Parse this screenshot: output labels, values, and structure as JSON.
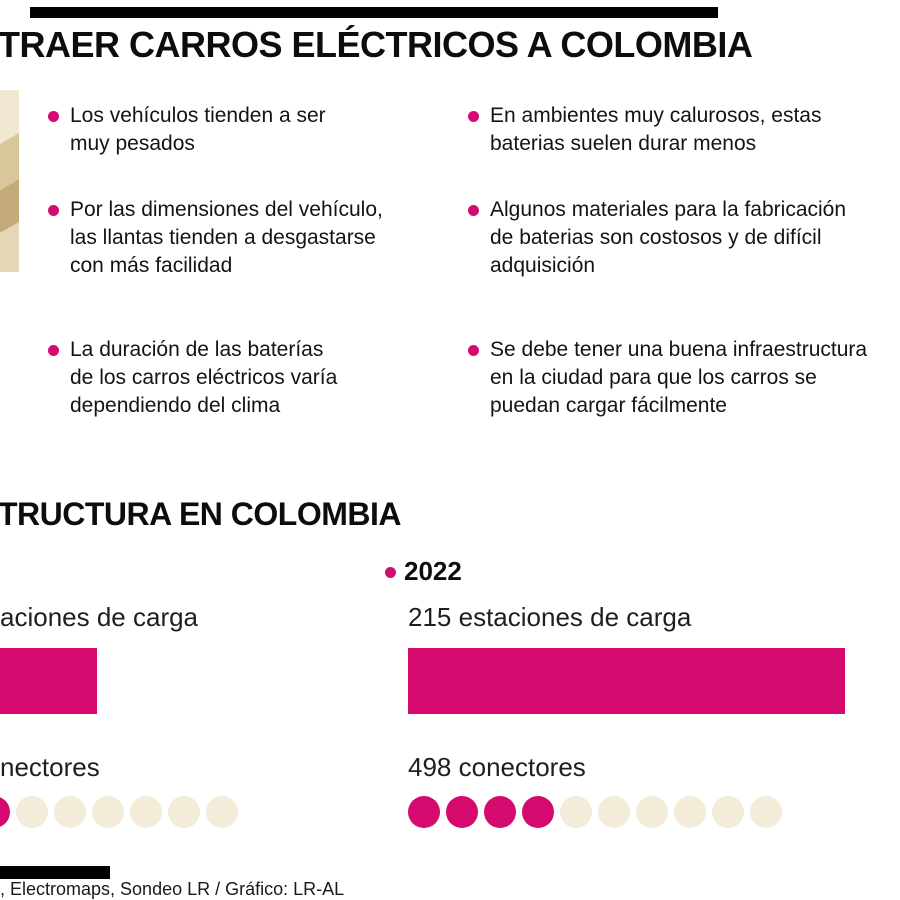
{
  "colors": {
    "accent": "#d50a6e",
    "beige": "#f2ecd9"
  },
  "header": {
    "title": "TRAER CARROS ELÉCTRICOS A COLOMBIA"
  },
  "bullets": {
    "left": [
      "Los vehículos tienden a ser\nmuy pesados",
      "Por las dimensiones del vehículo,\nlas llantas tienden a desgastarse\ncon más facilidad",
      "La duración de las baterías\nde los carros eléctricos varía\ndependiendo del clima"
    ],
    "right": [
      "En ambientes muy calurosos, estas\nbaterias suelen durar menos",
      "Algunos materiales para la fabricación\nde baterias son costosos y de difícil\nadquisición",
      "Se debe tener una buena infraestructura\nen la ciudad para que los carros se\npuedan cargar fácilmente"
    ]
  },
  "chart_data": {
    "type": "bar",
    "title": "TRUCTURA EN COLOMBIA",
    "legend_position": "none",
    "groups": [
      {
        "stations_label_visible": "aciones de carga",
        "connectors_label_visible": "nectores",
        "connector_dots": [
          "filled",
          "empty",
          "empty",
          "empty",
          "empty",
          "empty",
          "empty"
        ]
      },
      {
        "year": "2022",
        "stations": 215,
        "stations_label": "215 estaciones de carga",
        "connectors": 498,
        "connectors_label": "498 conectores",
        "connector_dots": [
          "filled",
          "filled",
          "filled",
          "filled",
          "empty",
          "empty",
          "empty",
          "empty",
          "empty",
          "empty"
        ]
      }
    ]
  },
  "footer": {
    "source": ", Electromaps, Sondeo LR / Gráfico: LR-AL"
  }
}
